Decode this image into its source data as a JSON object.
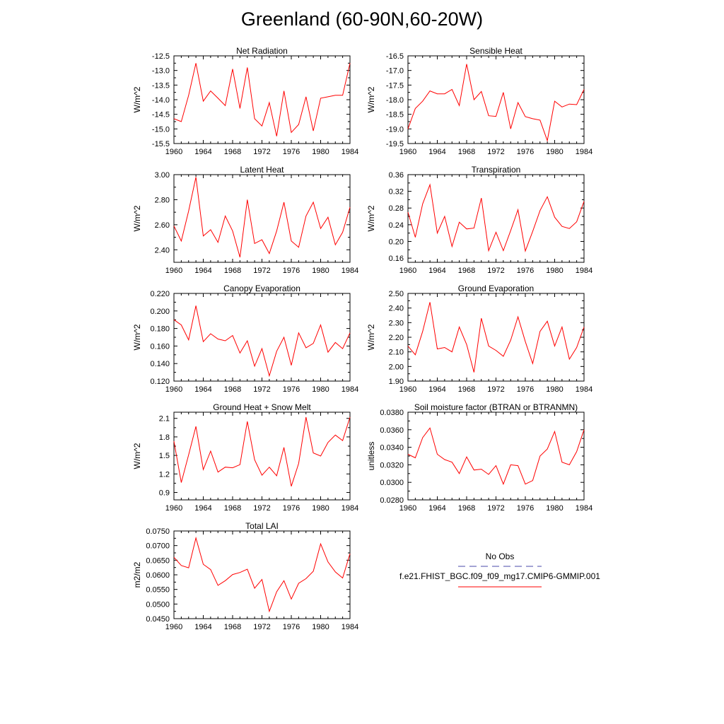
{
  "figure": {
    "title": "Greenland (60-90N,60-20W)",
    "legend": {
      "entries": [
        {
          "label": "No Obs",
          "color": "#4a4aa8",
          "dash": true
        },
        {
          "label": "f.e21.FHIST_BGC.f09_f09_mg17.CMIP6-GMMIP.001",
          "color": "#ff0000",
          "dash": false
        }
      ]
    }
  },
  "chart_data": [
    {
      "type": "line",
      "title": "Net Radiation",
      "ylabel": "W/m^2",
      "xlim": [
        1960,
        1984
      ],
      "ylim": [
        -15.5,
        -12.5
      ],
      "xticks": [
        1960,
        1964,
        1968,
        1972,
        1976,
        1980,
        1984
      ],
      "yticks": [
        -12.5,
        -13.0,
        -13.5,
        -14.0,
        -14.5,
        -15.0,
        -15.5
      ],
      "yticklabels": [
        "-12.5",
        "-13.0",
        "-13.5",
        "-14.0",
        "-14.5",
        "-15.0",
        "-15.5"
      ],
      "series": [
        {
          "name": "f.e21.FHIST_BGC.f09_f09_mg17.CMIP6-GMMIP.001",
          "color": "#ff0000",
          "x": [
            1960,
            1961,
            1962,
            1963,
            1964,
            1965,
            1966,
            1967,
            1968,
            1969,
            1970,
            1971,
            1972,
            1973,
            1974,
            1975,
            1976,
            1977,
            1978,
            1979,
            1980,
            1981,
            1982,
            1983,
            1984
          ],
          "values": [
            -14.65,
            -14.75,
            -13.85,
            -12.75,
            -14.05,
            -13.7,
            -13.95,
            -14.2,
            -12.95,
            -14.3,
            -12.9,
            -14.65,
            -14.9,
            -14.1,
            -15.25,
            -13.7,
            -15.12,
            -14.85,
            -13.9,
            -15.07,
            -13.95,
            -13.9,
            -13.85,
            -13.85,
            -12.75
          ]
        }
      ]
    },
    {
      "type": "line",
      "title": "Sensible Heat",
      "ylabel": "W/m^2",
      "xlim": [
        1960,
        1984
      ],
      "ylim": [
        -19.5,
        -16.5
      ],
      "xticks": [
        1960,
        1964,
        1968,
        1972,
        1976,
        1980,
        1984
      ],
      "yticks": [
        -16.5,
        -17.0,
        -17.5,
        -18.0,
        -18.5,
        -19.0,
        -19.5
      ],
      "yticklabels": [
        "-16.5",
        "-17.0",
        "-17.5",
        "-18.0",
        "-18.5",
        "-19.0",
        "-19.5"
      ],
      "series": [
        {
          "name": "f.e21.FHIST_BGC.f09_f09_mg17.CMIP6-GMMIP.001",
          "color": "#ff0000",
          "x": [
            1960,
            1961,
            1962,
            1963,
            1964,
            1965,
            1966,
            1967,
            1968,
            1969,
            1970,
            1971,
            1972,
            1973,
            1974,
            1975,
            1976,
            1977,
            1978,
            1979,
            1980,
            1981,
            1982,
            1983,
            1984
          ],
          "values": [
            -19.0,
            -18.3,
            -18.05,
            -17.7,
            -17.8,
            -17.8,
            -17.65,
            -18.2,
            -16.78,
            -18.0,
            -17.72,
            -18.55,
            -18.57,
            -17.75,
            -19.0,
            -18.1,
            -18.58,
            -18.65,
            -18.7,
            -19.4,
            -18.05,
            -18.25,
            -18.15,
            -18.17,
            -17.65
          ]
        }
      ]
    },
    {
      "type": "line",
      "title": "Latent Heat",
      "ylabel": "W/m^2",
      "xlim": [
        1960,
        1984
      ],
      "ylim": [
        2.3,
        3.0
      ],
      "xticks": [
        1960,
        1964,
        1968,
        1972,
        1976,
        1980,
        1984
      ],
      "yticks": [
        2.4,
        2.6,
        2.8,
        3.0
      ],
      "yticklabels": [
        "2.40",
        "2.60",
        "2.80",
        "3.00"
      ],
      "series": [
        {
          "name": "f.e21.FHIST_BGC.f09_f09_mg17.CMIP6-GMMIP.001",
          "color": "#ff0000",
          "x": [
            1960,
            1961,
            1962,
            1963,
            1964,
            1965,
            1966,
            1967,
            1968,
            1969,
            1970,
            1971,
            1972,
            1973,
            1974,
            1975,
            1976,
            1977,
            1978,
            1979,
            1980,
            1981,
            1982,
            1983,
            1984
          ],
          "values": [
            2.59,
            2.47,
            2.71,
            2.98,
            2.51,
            2.56,
            2.46,
            2.67,
            2.55,
            2.34,
            2.8,
            2.45,
            2.48,
            2.37,
            2.55,
            2.78,
            2.47,
            2.42,
            2.67,
            2.78,
            2.57,
            2.66,
            2.44,
            2.54,
            2.74
          ]
        }
      ]
    },
    {
      "type": "line",
      "title": "Transpiration",
      "ylabel": "W/m^2",
      "xlim": [
        1960,
        1984
      ],
      "ylim": [
        0.15,
        0.36
      ],
      "xticks": [
        1960,
        1964,
        1968,
        1972,
        1976,
        1980,
        1984
      ],
      "yticks": [
        0.16,
        0.2,
        0.24,
        0.28,
        0.32,
        0.36
      ],
      "yticklabels": [
        "0.16",
        "0.20",
        "0.24",
        "0.28",
        "0.32",
        "0.36"
      ],
      "series": [
        {
          "name": "f.e21.FHIST_BGC.f09_f09_mg17.CMIP6-GMMIP.001",
          "color": "#ff0000",
          "x": [
            1960,
            1961,
            1962,
            1963,
            1964,
            1965,
            1966,
            1967,
            1968,
            1969,
            1970,
            1971,
            1972,
            1973,
            1974,
            1975,
            1976,
            1977,
            1978,
            1979,
            1980,
            1981,
            1982,
            1983,
            1984
          ],
          "values": [
            0.27,
            0.21,
            0.29,
            0.336,
            0.22,
            0.26,
            0.188,
            0.246,
            0.23,
            0.232,
            0.304,
            0.178,
            0.222,
            0.178,
            0.226,
            0.276,
            0.177,
            0.224,
            0.274,
            0.307,
            0.258,
            0.236,
            0.231,
            0.247,
            0.296
          ]
        }
      ]
    },
    {
      "type": "line",
      "title": "Canopy Evaporation",
      "ylabel": "W/m^2",
      "xlim": [
        1960,
        1984
      ],
      "ylim": [
        0.12,
        0.22
      ],
      "xticks": [
        1960,
        1964,
        1968,
        1972,
        1976,
        1980,
        1984
      ],
      "yticks": [
        0.12,
        0.14,
        0.16,
        0.18,
        0.2,
        0.22
      ],
      "yticklabels": [
        "0.120",
        "0.140",
        "0.160",
        "0.180",
        "0.200",
        "0.220"
      ],
      "series": [
        {
          "name": "f.e21.FHIST_BGC.f09_f09_mg17.CMIP6-GMMIP.001",
          "color": "#ff0000",
          "x": [
            1960,
            1961,
            1962,
            1963,
            1964,
            1965,
            1966,
            1967,
            1968,
            1969,
            1970,
            1971,
            1972,
            1973,
            1974,
            1975,
            1976,
            1977,
            1978,
            1979,
            1980,
            1981,
            1982,
            1983,
            1984
          ],
          "values": [
            0.19,
            0.184,
            0.167,
            0.206,
            0.165,
            0.174,
            0.168,
            0.166,
            0.172,
            0.152,
            0.166,
            0.137,
            0.157,
            0.126,
            0.154,
            0.17,
            0.138,
            0.175,
            0.158,
            0.163,
            0.184,
            0.153,
            0.164,
            0.157,
            0.175
          ]
        }
      ]
    },
    {
      "type": "line",
      "title": "Ground Evaporation",
      "ylabel": "W/m^2",
      "xlim": [
        1960,
        1984
      ],
      "ylim": [
        1.9,
        2.5
      ],
      "xticks": [
        1960,
        1964,
        1968,
        1972,
        1976,
        1980,
        1984
      ],
      "yticks": [
        1.9,
        2.0,
        2.1,
        2.2,
        2.3,
        2.4,
        2.5
      ],
      "yticklabels": [
        "1.90",
        "2.00",
        "2.10",
        "2.20",
        "2.30",
        "2.40",
        "2.50"
      ],
      "series": [
        {
          "name": "f.e21.FHIST_BGC.f09_f09_mg17.CMIP6-GMMIP.001",
          "color": "#ff0000",
          "x": [
            1960,
            1961,
            1962,
            1963,
            1964,
            1965,
            1966,
            1967,
            1968,
            1969,
            1970,
            1971,
            1972,
            1973,
            1974,
            1975,
            1976,
            1977,
            1978,
            1979,
            1980,
            1981,
            1982,
            1983,
            1984
          ],
          "values": [
            2.14,
            2.08,
            2.24,
            2.44,
            2.12,
            2.13,
            2.1,
            2.27,
            2.15,
            1.96,
            2.33,
            2.14,
            2.11,
            2.07,
            2.18,
            2.34,
            2.17,
            2.02,
            2.24,
            2.31,
            2.14,
            2.27,
            2.05,
            2.13,
            2.27
          ]
        }
      ]
    },
    {
      "type": "line",
      "title": "Ground Heat + Snow Melt",
      "ylabel": "W/m^2",
      "xlim": [
        1960,
        1984
      ],
      "ylim": [
        0.78,
        2.2
      ],
      "xticks": [
        1960,
        1964,
        1968,
        1972,
        1976,
        1980,
        1984
      ],
      "yticks": [
        0.9,
        1.2,
        1.5,
        1.8,
        2.1
      ],
      "yticklabels": [
        "0.9",
        "1.2",
        "1.5",
        "1.8",
        "2.1"
      ],
      "series": [
        {
          "name": "f.e21.FHIST_BGC.f09_f09_mg17.CMIP6-GMMIP.001",
          "color": "#ff0000",
          "x": [
            1960,
            1961,
            1962,
            1963,
            1964,
            1965,
            1966,
            1967,
            1968,
            1969,
            1970,
            1971,
            1972,
            1973,
            1974,
            1975,
            1976,
            1977,
            1978,
            1979,
            1980,
            1981,
            1982,
            1983,
            1984
          ],
          "values": [
            1.73,
            1.06,
            1.51,
            1.97,
            1.27,
            1.57,
            1.23,
            1.31,
            1.3,
            1.35,
            2.05,
            1.43,
            1.18,
            1.31,
            1.17,
            1.63,
            1.0,
            1.37,
            2.12,
            1.54,
            1.49,
            1.71,
            1.83,
            1.74,
            2.12
          ]
        }
      ]
    },
    {
      "type": "line",
      "title": "Soil moisture factor (BTRAN or BTRANMN)",
      "ylabel": "unitless",
      "xlim": [
        1960,
        1984
      ],
      "ylim": [
        0.028,
        0.038
      ],
      "xticks": [
        1960,
        1964,
        1968,
        1972,
        1976,
        1980,
        1984
      ],
      "yticks": [
        0.028,
        0.03,
        0.032,
        0.034,
        0.036,
        0.038
      ],
      "yticklabels": [
        "0.0280",
        "0.0300",
        "0.0320",
        "0.0340",
        "0.0360",
        "0.0380"
      ],
      "series": [
        {
          "name": "f.e21.FHIST_BGC.f09_f09_mg17.CMIP6-GMMIP.001",
          "color": "#ff0000",
          "x": [
            1960,
            1961,
            1962,
            1963,
            1964,
            1965,
            1966,
            1967,
            1968,
            1969,
            1970,
            1971,
            1972,
            1973,
            1974,
            1975,
            1976,
            1977,
            1978,
            1979,
            1980,
            1981,
            1982,
            1983,
            1984
          ],
          "values": [
            0.0332,
            0.0328,
            0.0351,
            0.0362,
            0.0332,
            0.0326,
            0.0323,
            0.031,
            0.0329,
            0.0314,
            0.0315,
            0.0309,
            0.0319,
            0.0298,
            0.032,
            0.0319,
            0.0298,
            0.0302,
            0.033,
            0.0338,
            0.0358,
            0.0323,
            0.032,
            0.0335,
            0.036
          ]
        }
      ]
    },
    {
      "type": "line",
      "title": "Total LAI",
      "ylabel": "m2/m2",
      "xlim": [
        1960,
        1984
      ],
      "ylim": [
        0.045,
        0.075
      ],
      "xticks": [
        1960,
        1964,
        1968,
        1972,
        1976,
        1980,
        1984
      ],
      "yticks": [
        0.045,
        0.05,
        0.055,
        0.06,
        0.065,
        0.07,
        0.075
      ],
      "yticklabels": [
        "0.0450",
        "0.0500",
        "0.0550",
        "0.0600",
        "0.0650",
        "0.0700",
        "0.0750"
      ],
      "series": [
        {
          "name": "f.e21.FHIST_BGC.f09_f09_mg17.CMIP6-GMMIP.001",
          "color": "#ff0000",
          "x": [
            1960,
            1961,
            1962,
            1963,
            1964,
            1965,
            1966,
            1967,
            1968,
            1969,
            1970,
            1971,
            1972,
            1973,
            1974,
            1975,
            1976,
            1977,
            1978,
            1979,
            1980,
            1981,
            1982,
            1983,
            1984
          ],
          "values": [
            0.066,
            0.0632,
            0.0624,
            0.0726,
            0.0636,
            0.0618,
            0.0564,
            0.058,
            0.0601,
            0.0608,
            0.0619,
            0.0554,
            0.0584,
            0.0475,
            0.0542,
            0.058,
            0.0517,
            0.0571,
            0.0587,
            0.0612,
            0.0706,
            0.0644,
            0.061,
            0.0589,
            0.0672
          ]
        }
      ]
    }
  ]
}
